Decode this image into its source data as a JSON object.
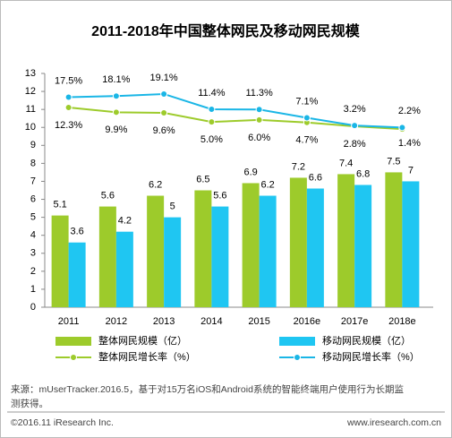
{
  "chart_data": {
    "type": "bar",
    "title": "2011-2018年中国整体网民及移动网民规模",
    "categories": [
      "2011",
      "2012",
      "2013",
      "2014",
      "2015",
      "2016e",
      "2017e",
      "2018e"
    ],
    "series": [
      {
        "name": "整体网民规模（亿）",
        "type": "bar",
        "color": "#9dcb2b",
        "values": [
          5.1,
          5.6,
          6.2,
          6.5,
          6.9,
          7.2,
          7.4,
          7.5
        ]
      },
      {
        "name": "移动网民规模（亿）",
        "type": "bar",
        "color": "#1fc6f2",
        "values": [
          3.6,
          4.2,
          5.0,
          5.6,
          6.2,
          6.6,
          6.8,
          7.0
        ]
      },
      {
        "name": "整体网民增长率（%）",
        "type": "line",
        "axis": "y2",
        "color": "#9dcb2b",
        "values": [
          12.3,
          9.9,
          9.6,
          5.0,
          6.0,
          4.7,
          2.8,
          1.4
        ],
        "value_labels": [
          "12.3%",
          "9.9%",
          "9.6%",
          "5.0%",
          "6.0%",
          "4.7%",
          "2.8%",
          "1.4%"
        ]
      },
      {
        "name": "移动网民增长率（%）",
        "type": "line",
        "axis": "y2",
        "color": "#1ab6e6",
        "values": [
          17.5,
          18.1,
          19.1,
          11.4,
          11.3,
          7.1,
          3.2,
          2.2
        ],
        "value_labels": [
          "17.5%",
          "18.1%",
          "19.1%",
          "11.4%",
          "11.3%",
          "7.1%",
          "3.2%",
          "2.2%"
        ]
      }
    ],
    "ylim": [
      0,
      13
    ],
    "yticks": [
      0,
      1,
      2,
      3,
      4,
      5,
      6,
      7,
      8,
      9,
      10,
      11,
      12,
      13
    ],
    "y2lim": [
      -88.6,
      29.5
    ],
    "source": [
      "来源：mUserTracker.2016.5，基于对15万名iOS和Android系统的智能终端用户使用行为长期监",
      "测获得。"
    ],
    "footer_left": "©2016.11 iResearch Inc.",
    "footer_right": "www.iresearch.com.cn"
  }
}
